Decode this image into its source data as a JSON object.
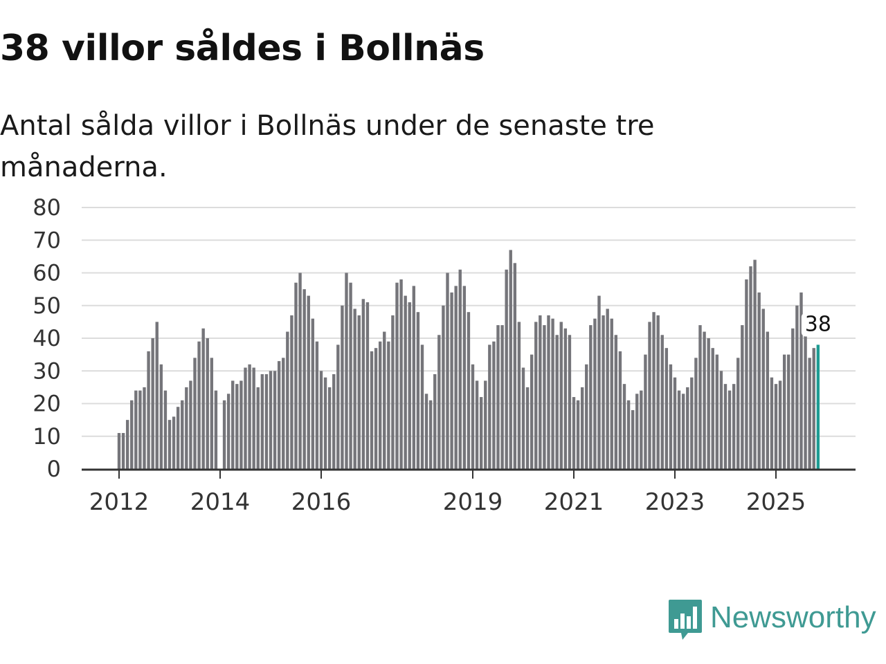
{
  "header": {
    "title": "38 villor såldes i Bollnäs",
    "subtitle": "Antal sålda villor i Bollnäs under de senaste tre månaderna."
  },
  "brand": {
    "name": "Newsworthy",
    "color": "#3f9a93"
  },
  "colors": {
    "bar": "#75757a",
    "highlight": "#1e9c93",
    "grid": "#dcdcdc",
    "axis": "#333333"
  },
  "chart_data": {
    "type": "bar",
    "title": "38 villor såldes i Bollnäs",
    "subtitle": "Antal sålda villor i Bollnäs under de senaste tre månaderna.",
    "xlabel": "",
    "ylabel": "",
    "ylim": [
      0,
      80
    ],
    "yticks": [
      "0",
      "10",
      "20",
      "30",
      "40",
      "50",
      "60",
      "70",
      "80"
    ],
    "grid": true,
    "start": "2012-01",
    "frequency": "monthly",
    "xticks": [
      {
        "label": "2012",
        "index": 0
      },
      {
        "label": "2014",
        "index": 24
      },
      {
        "label": "2016",
        "index": 48
      },
      {
        "label": "2019",
        "index": 84
      },
      {
        "label": "2021",
        "index": 108
      },
      {
        "label": "2023",
        "index": 132
      },
      {
        "label": "2025",
        "index": 156
      }
    ],
    "values": [
      11,
      11,
      15,
      21,
      24,
      24,
      25,
      36,
      40,
      45,
      32,
      24,
      15,
      16,
      19,
      21,
      25,
      27,
      34,
      39,
      43,
      40,
      34,
      24,
      0,
      21,
      23,
      27,
      26,
      27,
      31,
      32,
      31,
      25,
      29,
      29,
      30,
      30,
      33,
      34,
      42,
      47,
      57,
      60,
      55,
      53,
      46,
      39,
      30,
      28,
      25,
      29,
      38,
      50,
      60,
      57,
      49,
      47,
      52,
      51,
      36,
      37,
      39,
      42,
      39,
      47,
      57,
      58,
      53,
      51,
      56,
      48,
      38,
      23,
      21,
      29,
      41,
      50,
      60,
      54,
      56,
      61,
      56,
      48,
      32,
      27,
      22,
      27,
      38,
      39,
      44,
      44,
      61,
      67,
      63,
      45,
      31,
      25,
      35,
      45,
      47,
      44,
      47,
      46,
      41,
      45,
      43,
      41,
      22,
      21,
      25,
      32,
      44,
      46,
      53,
      47,
      49,
      46,
      41,
      36,
      26,
      21,
      18,
      23,
      24,
      35,
      45,
      48,
      47,
      41,
      37,
      32,
      28,
      24,
      23,
      25,
      28,
      34,
      44,
      42,
      40,
      37,
      35,
      30,
      26,
      24,
      26,
      34,
      44,
      58,
      62,
      64,
      54,
      49,
      42,
      28,
      26,
      27,
      35,
      35,
      43,
      50,
      54,
      41,
      34,
      37,
      38
    ],
    "highlight_last": true,
    "annotation": {
      "label": "38",
      "value": 38
    }
  }
}
